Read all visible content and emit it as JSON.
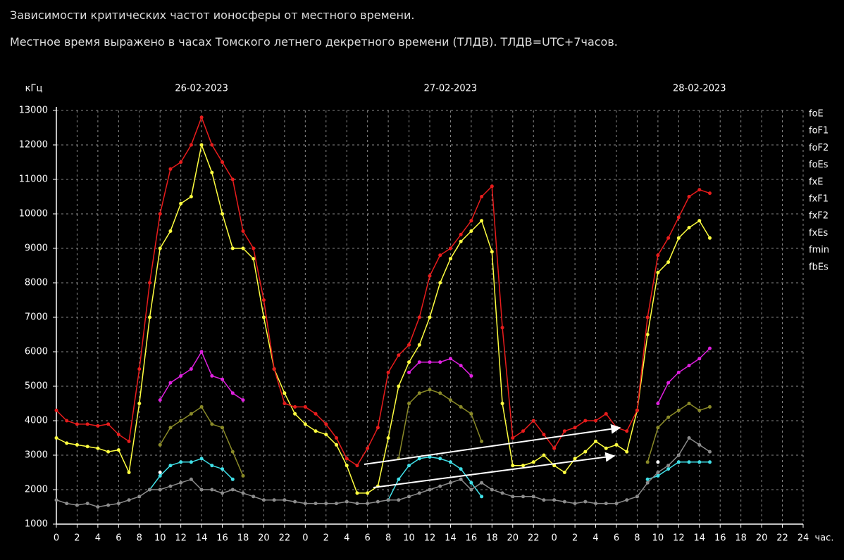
{
  "chart_data": {
    "type": "line",
    "title": "Зависимости критических частот ионосферы от местного времени.",
    "subtitle": "Местное время выражено в часах Томского летнего декретного времени (ТЛДВ). ТЛДВ=UTC+7часов.",
    "y_label": "кГц",
    "x_label": "час.",
    "day_labels": [
      "26-02-2023",
      "27-02-2023",
      "28-02-2023"
    ],
    "x": [
      0,
      1,
      2,
      3,
      4,
      5,
      6,
      7,
      8,
      9,
      10,
      11,
      12,
      13,
      14,
      15,
      16,
      17,
      18,
      19,
      20,
      21,
      22,
      23,
      24,
      25,
      26,
      27,
      28,
      29,
      30,
      31,
      32,
      33,
      34,
      35,
      36,
      37,
      38,
      39,
      40,
      41,
      42,
      43,
      44,
      45,
      46,
      47,
      48,
      49,
      50,
      51,
      52,
      53,
      54,
      55,
      56,
      57,
      58,
      59,
      60,
      61,
      62,
      63
    ],
    "series": [
      {
        "name": "foE",
        "color": "#40e0e8",
        "values": [
          null,
          null,
          null,
          null,
          null,
          null,
          null,
          null,
          null,
          2000,
          2400,
          2700,
          2800,
          2800,
          2900,
          2700,
          2600,
          2300,
          null,
          null,
          null,
          null,
          null,
          null,
          null,
          null,
          null,
          null,
          null,
          null,
          null,
          null,
          1700,
          2300,
          2700,
          2900,
          2950,
          2900,
          2800,
          2600,
          2200,
          1800,
          null,
          null,
          null,
          null,
          null,
          null,
          null,
          null,
          null,
          null,
          null,
          null,
          null,
          null,
          null,
          2300,
          2400,
          2600,
          2800,
          2800,
          2800,
          2800
        ]
      },
      {
        "name": "foF1",
        "color": "#8a8a28",
        "values": [
          null,
          null,
          null,
          null,
          null,
          null,
          null,
          null,
          null,
          null,
          3300,
          3800,
          4000,
          4200,
          4400,
          3900,
          3800,
          3100,
          2400,
          null,
          null,
          null,
          null,
          null,
          null,
          null,
          null,
          null,
          null,
          null,
          null,
          null,
          null,
          2900,
          4500,
          4800,
          4900,
          4800,
          4600,
          4400,
          4200,
          3400,
          null,
          null,
          null,
          null,
          null,
          null,
          null,
          null,
          null,
          null,
          null,
          null,
          null,
          null,
          null,
          2800,
          3800,
          4100,
          4300,
          4500,
          4300,
          4400
        ]
      },
      {
        "name": "foF2",
        "color": "#ffff40",
        "values": [
          3500,
          3350,
          3300,
          3250,
          3200,
          3100,
          3150,
          2500,
          4500,
          7000,
          9000,
          9500,
          10300,
          10500,
          12000,
          11200,
          10000,
          9000,
          9000,
          8700,
          7000,
          5500,
          4800,
          4200,
          3900,
          3700,
          3600,
          3300,
          2700,
          1900,
          1900,
          2100,
          3500,
          5000,
          5700,
          6200,
          7000,
          8000,
          8700,
          9200,
          9500,
          9800,
          8900,
          4500,
          2700,
          2700,
          2800,
          3000,
          2700,
          2500,
          2900,
          3100,
          3400,
          3200,
          3300,
          3100,
          4300,
          6500,
          8300,
          8600,
          9300,
          9600,
          9800,
          9300
        ]
      },
      {
        "name": "foEs",
        "color": "#30c030",
        "values": [
          null,
          null,
          null,
          null,
          null,
          null,
          null,
          null,
          null,
          null,
          null,
          null,
          null,
          null,
          null,
          null,
          null,
          null,
          null,
          null,
          null,
          null,
          null,
          null,
          null,
          null,
          null,
          null,
          null,
          null,
          null,
          null,
          null,
          null,
          null,
          null,
          null,
          null,
          null,
          null,
          null,
          null,
          null,
          null,
          null,
          null,
          null,
          null,
          null,
          null,
          null,
          null,
          null,
          null,
          null,
          null,
          null,
          null,
          null,
          null,
          null,
          null,
          null,
          null
        ]
      },
      {
        "name": "fxE",
        "color": "#a01818",
        "values": [
          null,
          null,
          null,
          null,
          null,
          null,
          null,
          null,
          null,
          null,
          null,
          null,
          null,
          null,
          null,
          null,
          null,
          null,
          null,
          null,
          null,
          null,
          null,
          null,
          null,
          null,
          null,
          null,
          null,
          null,
          null,
          null,
          null,
          null,
          null,
          null,
          null,
          null,
          null,
          null,
          null,
          null,
          null,
          null,
          null,
          null,
          null,
          null,
          null,
          null,
          null,
          null,
          null,
          null,
          null,
          null,
          null,
          null,
          null,
          null,
          null,
          null,
          null,
          null
        ]
      },
      {
        "name": "fxF1",
        "color": "#e020e0",
        "values": [
          null,
          null,
          null,
          null,
          null,
          null,
          null,
          null,
          null,
          null,
          4600,
          5100,
          5300,
          5500,
          6000,
          5300,
          5200,
          4800,
          4600,
          null,
          null,
          null,
          null,
          null,
          null,
          null,
          null,
          null,
          null,
          null,
          null,
          null,
          null,
          null,
          5400,
          5700,
          5700,
          5700,
          5800,
          5600,
          5300,
          null,
          null,
          null,
          null,
          null,
          null,
          null,
          null,
          null,
          null,
          null,
          null,
          null,
          null,
          null,
          null,
          null,
          4500,
          5100,
          5400,
          5600,
          5800,
          6100
        ]
      },
      {
        "name": "fxF2",
        "color": "#e81c1c",
        "values": [
          4300,
          4000,
          3900,
          3900,
          3850,
          3900,
          3600,
          3400,
          5500,
          8000,
          10000,
          11300,
          11500,
          12000,
          12800,
          12000,
          11500,
          11000,
          9500,
          9000,
          7500,
          5500,
          4500,
          4400,
          4400,
          4200,
          3900,
          3500,
          2900,
          2700,
          3200,
          3800,
          5400,
          5900,
          6200,
          7000,
          8200,
          8800,
          9000,
          9400,
          9800,
          10500,
          10800,
          6700,
          3500,
          3700,
          4000,
          3600,
          3200,
          3700,
          3800,
          4000,
          4000,
          4200,
          3800,
          3700,
          4300,
          7000,
          8800,
          9300,
          9900,
          10500,
          10700,
          10600
        ]
      },
      {
        "name": "fxEs",
        "color": "#208a8a",
        "values": [
          null,
          null,
          null,
          null,
          null,
          null,
          null,
          null,
          null,
          null,
          null,
          null,
          null,
          null,
          null,
          null,
          null,
          null,
          null,
          null,
          null,
          null,
          null,
          null,
          null,
          null,
          null,
          null,
          null,
          null,
          null,
          null,
          null,
          null,
          null,
          null,
          null,
          null,
          null,
          null,
          null,
          null,
          null,
          null,
          null,
          null,
          null,
          null,
          null,
          null,
          null,
          null,
          null,
          null,
          null,
          null,
          null,
          null,
          null,
          null,
          null,
          null,
          null,
          null
        ]
      },
      {
        "name": "fmin",
        "color": "#8c8c8c",
        "values": [
          1700,
          1600,
          1550,
          1600,
          1500,
          1550,
          1600,
          1700,
          1800,
          2000,
          2000,
          2100,
          2200,
          2300,
          2000,
          2000,
          1900,
          2000,
          1900,
          1800,
          1700,
          1700,
          1700,
          1650,
          1600,
          1600,
          1600,
          1600,
          1650,
          1600,
          1600,
          1650,
          1700,
          1700,
          1800,
          1900,
          2000,
          2100,
          2200,
          2300,
          2000,
          2200,
          2000,
          1900,
          1800,
          1800,
          1800,
          1700,
          1700,
          1650,
          1600,
          1650,
          1600,
          1600,
          1600,
          1700,
          1800,
          2200,
          2500,
          2700,
          3000,
          3500,
          3300,
          3100
        ]
      },
      {
        "name": "fbEs",
        "color": "#ffffff",
        "values": [
          null,
          null,
          null,
          null,
          null,
          null,
          null,
          null,
          null,
          null,
          2500,
          null,
          null,
          null,
          null,
          null,
          null,
          null,
          null,
          null,
          null,
          null,
          null,
          null,
          null,
          null,
          null,
          null,
          null,
          null,
          null,
          null,
          null,
          null,
          null,
          null,
          null,
          null,
          null,
          null,
          null,
          null,
          null,
          null,
          null,
          null,
          null,
          null,
          null,
          null,
          null,
          null,
          null,
          null,
          null,
          null,
          null,
          null,
          2800,
          null,
          null,
          null,
          null,
          null
        ]
      }
    ],
    "xlim": [
      0,
      72
    ],
    "ylim": [
      1000,
      13000
    ],
    "xticks": [
      0,
      2,
      4,
      6,
      8,
      10,
      12,
      14,
      16,
      18,
      20,
      22,
      {
        "value": 24,
        "label": "0"
      },
      {
        "value": 26,
        "label": "2"
      },
      {
        "value": 28,
        "label": "4"
      },
      {
        "value": 30,
        "label": "6"
      },
      {
        "value": 32,
        "label": "8"
      },
      {
        "value": 34,
        "label": "10"
      },
      {
        "value": 36,
        "label": "12"
      },
      {
        "value": 38,
        "label": "14"
      },
      {
        "value": 40,
        "label": "16"
      },
      {
        "value": 42,
        "label": "18"
      },
      {
        "value": 44,
        "label": "20"
      },
      {
        "value": 46,
        "label": "22"
      },
      {
        "value": 48,
        "label": "0"
      },
      {
        "value": 50,
        "label": "2"
      },
      {
        "value": 52,
        "label": "4"
      },
      {
        "value": 54,
        "label": "6"
      },
      {
        "value": 56,
        "label": "8"
      },
      {
        "value": 58,
        "label": "10"
      },
      {
        "value": 60,
        "label": "12"
      },
      {
        "value": 62,
        "label": "14"
      },
      {
        "value": 64,
        "label": "16"
      },
      {
        "value": 66,
        "label": "18"
      },
      {
        "value": 68,
        "label": "20"
      },
      {
        "value": 70,
        "label": "22"
      },
      {
        "value": 72,
        "label": "24"
      }
    ],
    "yticks": [
      1000,
      2000,
      3000,
      4000,
      5000,
      6000,
      7000,
      8000,
      9000,
      10000,
      11000,
      12000,
      13000
    ],
    "grid": true,
    "legend": "right"
  }
}
